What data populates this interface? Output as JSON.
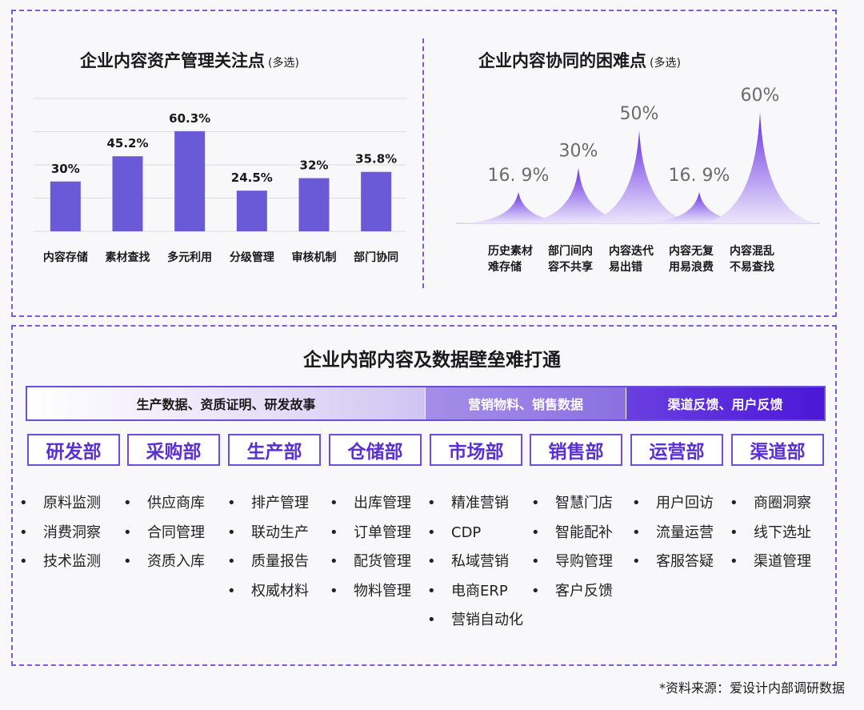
{
  "chart_data": [
    {
      "type": "bar",
      "title": "企业内容资产管理关注点",
      "subtitle": "(多选)",
      "categories": [
        "内容存储",
        "素材查找",
        "多元利用",
        "分级管理",
        "审核机制",
        "部门协同"
      ],
      "values": [
        30,
        45.2,
        60.3,
        24.5,
        32,
        35.8
      ],
      "data_labels": [
        "30%",
        "45.2%",
        "60.3%",
        "24.5%",
        "32%",
        "35.8%"
      ],
      "ylim": [
        0,
        80
      ],
      "grid": true,
      "bar_color": "#6b5ad8"
    },
    {
      "type": "area",
      "title": "企业内容协同的困难点",
      "subtitle": "(多选)",
      "categories": [
        "历史素材难存储",
        "部门间内容不共享",
        "内容迭代易出错",
        "内容无复用易浪费",
        "内容混乱不易查找"
      ],
      "label_lines": [
        [
          "历史素材",
          "难存储"
        ],
        [
          "部门间内",
          "容不共享"
        ],
        [
          "内容迭代",
          "易出错"
        ],
        [
          "内容无复",
          "用易浪费"
        ],
        [
          "内容混乱",
          "不易查找"
        ]
      ],
      "values": [
        16.9,
        30,
        50,
        16.9,
        60
      ],
      "data_labels": [
        "16. 9%",
        "30%",
        "50%",
        "16. 9%",
        "60%"
      ],
      "ylim": [
        0,
        60
      ],
      "color_top": "#5a1fe0",
      "color_bottom": "#ece6fb"
    }
  ],
  "bottom": {
    "title": "企业内部内容及数据壁垒难打通",
    "bands": [
      "生产数据、资质证明、研发故事",
      "营销物料、销售数据",
      "渠道反馈、用户反馈"
    ],
    "departments": [
      {
        "name": "研发部",
        "items": [
          "原料监测",
          "消费洞察",
          "技术监测"
        ]
      },
      {
        "name": "采购部",
        "items": [
          "供应商库",
          "合同管理",
          "资质入库"
        ]
      },
      {
        "name": "生产部",
        "items": [
          "排产管理",
          "联动生产",
          "质量报告",
          "权威材料"
        ]
      },
      {
        "name": "仓储部",
        "items": [
          "出库管理",
          "订单管理",
          "配货管理",
          "物料管理"
        ]
      },
      {
        "name": "市场部",
        "items": [
          "精准营销",
          "CDP",
          "私域营销",
          "电商ERP",
          "营销自动化"
        ]
      },
      {
        "name": "销售部",
        "items": [
          "智慧门店",
          "智能配补",
          "导购管理",
          "客户反馈"
        ]
      },
      {
        "name": "运营部",
        "items": [
          "用户回访",
          "流量运营",
          "客服答疑"
        ]
      },
      {
        "name": "渠道部",
        "items": [
          "商圈洞察",
          "线下选址",
          "渠道管理"
        ]
      }
    ]
  },
  "source": "*资料来源：爱设计内部调研数据",
  "colors": {
    "accent": "#6b4fd8",
    "dept_text": "#5a2fd6",
    "dashed_border": "#7b5cd6"
  }
}
